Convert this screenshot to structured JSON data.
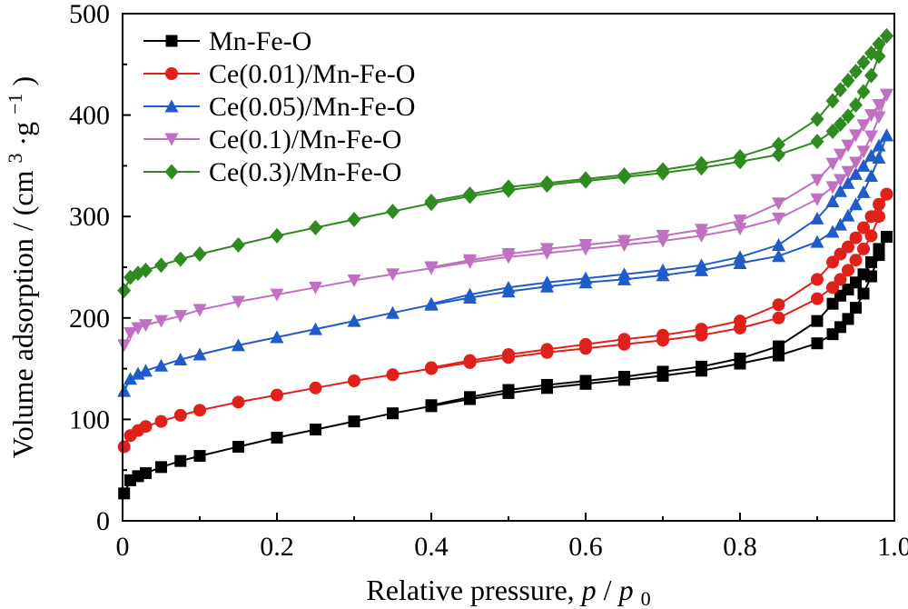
{
  "chart_data": {
    "type": "line",
    "title": "",
    "xlabel": "Relative pressure,",
    "xlabel_p": "p",
    "xlabel_slash": "/",
    "xlabel_p0": "p",
    "xlabel_p0_sub": "0",
    "ylabel": "Volume adsorption / (cm",
    "ylabel_sup3": "3",
    "ylabel_mid": "·g",
    "ylabel_supm1": "−1",
    "ylabel_end": ")",
    "xlim": [
      0,
      1.0
    ],
    "ylim": [
      0,
      500
    ],
    "xticks": [
      "0",
      "0.2",
      "0.4",
      "0.6",
      "0.8",
      "1.0"
    ],
    "xtick_values": [
      0,
      0.2,
      0.4,
      0.6,
      0.8,
      1.0
    ],
    "yticks": [
      "0",
      "100",
      "200",
      "300",
      "400",
      "500"
    ],
    "ytick_values": [
      0,
      100,
      200,
      300,
      400,
      500
    ],
    "grid": false,
    "legend_position": "top-left",
    "series": [
      {
        "name": "Mn-Fe-O",
        "color": "#000000",
        "marker": "square",
        "adsorption": [
          [
            0.002,
            27
          ],
          [
            0.01,
            40
          ],
          [
            0.02,
            44
          ],
          [
            0.03,
            47
          ],
          [
            0.05,
            53
          ],
          [
            0.075,
            59
          ],
          [
            0.1,
            64
          ],
          [
            0.15,
            73
          ],
          [
            0.2,
            82
          ],
          [
            0.25,
            90
          ],
          [
            0.3,
            98
          ],
          [
            0.35,
            106
          ],
          [
            0.4,
            113
          ],
          [
            0.45,
            120
          ],
          [
            0.5,
            126
          ],
          [
            0.55,
            131
          ],
          [
            0.6,
            135
          ],
          [
            0.65,
            139
          ],
          [
            0.7,
            143
          ],
          [
            0.75,
            148
          ],
          [
            0.8,
            155
          ],
          [
            0.85,
            163
          ],
          [
            0.9,
            175
          ],
          [
            0.92,
            184
          ],
          [
            0.93,
            191
          ],
          [
            0.94,
            199
          ],
          [
            0.95,
            210
          ],
          [
            0.96,
            224
          ],
          [
            0.97,
            241
          ],
          [
            0.98,
            262
          ],
          [
            0.99,
            280
          ]
        ],
        "desorption": [
          [
            0.99,
            280
          ],
          [
            0.98,
            268
          ],
          [
            0.97,
            255
          ],
          [
            0.96,
            243
          ],
          [
            0.95,
            235
          ],
          [
            0.94,
            228
          ],
          [
            0.93,
            222
          ],
          [
            0.92,
            214
          ],
          [
            0.9,
            197
          ],
          [
            0.85,
            172
          ],
          [
            0.8,
            160
          ],
          [
            0.75,
            152
          ],
          [
            0.7,
            147
          ],
          [
            0.65,
            142
          ],
          [
            0.6,
            138
          ],
          [
            0.55,
            134
          ],
          [
            0.5,
            129
          ],
          [
            0.45,
            122
          ],
          [
            0.4,
            114
          ]
        ]
      },
      {
        "name": "Ce(0.01)/Mn-Fe-O",
        "color": "#e0201b",
        "marker": "circle",
        "adsorption": [
          [
            0.002,
            73
          ],
          [
            0.01,
            84
          ],
          [
            0.02,
            89
          ],
          [
            0.03,
            93
          ],
          [
            0.05,
            98
          ],
          [
            0.075,
            104
          ],
          [
            0.1,
            109
          ],
          [
            0.15,
            117
          ],
          [
            0.2,
            124
          ],
          [
            0.25,
            131
          ],
          [
            0.3,
            138
          ],
          [
            0.35,
            144
          ],
          [
            0.4,
            150
          ],
          [
            0.45,
            156
          ],
          [
            0.5,
            161
          ],
          [
            0.55,
            166
          ],
          [
            0.6,
            170
          ],
          [
            0.65,
            174
          ],
          [
            0.7,
            178
          ],
          [
            0.75,
            183
          ],
          [
            0.8,
            190
          ],
          [
            0.85,
            200
          ],
          [
            0.9,
            219
          ],
          [
            0.92,
            230
          ],
          [
            0.93,
            238
          ],
          [
            0.94,
            247
          ],
          [
            0.95,
            257
          ],
          [
            0.96,
            268
          ],
          [
            0.97,
            281
          ],
          [
            0.98,
            300
          ],
          [
            0.99,
            322
          ]
        ],
        "desorption": [
          [
            0.99,
            322
          ],
          [
            0.98,
            312
          ],
          [
            0.97,
            300
          ],
          [
            0.96,
            289
          ],
          [
            0.95,
            279
          ],
          [
            0.94,
            270
          ],
          [
            0.93,
            263
          ],
          [
            0.92,
            255
          ],
          [
            0.9,
            238
          ],
          [
            0.85,
            213
          ],
          [
            0.8,
            197
          ],
          [
            0.75,
            189
          ],
          [
            0.7,
            183
          ],
          [
            0.65,
            179
          ],
          [
            0.6,
            174
          ],
          [
            0.55,
            169
          ],
          [
            0.5,
            164
          ],
          [
            0.45,
            158
          ],
          [
            0.4,
            151
          ]
        ]
      },
      {
        "name": "Ce(0.05)/Mn-Fe-O",
        "color": "#1f5cc8",
        "marker": "triangle-up",
        "adsorption": [
          [
            0.002,
            128
          ],
          [
            0.01,
            140
          ],
          [
            0.02,
            145
          ],
          [
            0.03,
            148
          ],
          [
            0.05,
            153
          ],
          [
            0.075,
            159
          ],
          [
            0.1,
            164
          ],
          [
            0.15,
            173
          ],
          [
            0.2,
            181
          ],
          [
            0.25,
            189
          ],
          [
            0.3,
            197
          ],
          [
            0.35,
            205
          ],
          [
            0.4,
            213
          ],
          [
            0.45,
            220
          ],
          [
            0.5,
            226
          ],
          [
            0.55,
            231
          ],
          [
            0.6,
            235
          ],
          [
            0.65,
            238
          ],
          [
            0.7,
            242
          ],
          [
            0.75,
            247
          ],
          [
            0.8,
            254
          ],
          [
            0.85,
            261
          ],
          [
            0.9,
            275
          ],
          [
            0.92,
            285
          ],
          [
            0.93,
            292
          ],
          [
            0.94,
            301
          ],
          [
            0.95,
            312
          ],
          [
            0.96,
            324
          ],
          [
            0.97,
            340
          ],
          [
            0.98,
            358
          ],
          [
            0.99,
            380
          ]
        ],
        "desorption": [
          [
            0.99,
            380
          ],
          [
            0.98,
            370
          ],
          [
            0.97,
            360
          ],
          [
            0.96,
            350
          ],
          [
            0.95,
            342
          ],
          [
            0.94,
            333
          ],
          [
            0.93,
            325
          ],
          [
            0.92,
            315
          ],
          [
            0.9,
            298
          ],
          [
            0.85,
            272
          ],
          [
            0.8,
            260
          ],
          [
            0.75,
            252
          ],
          [
            0.7,
            247
          ],
          [
            0.65,
            243
          ],
          [
            0.6,
            239
          ],
          [
            0.55,
            235
          ],
          [
            0.5,
            230
          ],
          [
            0.45,
            223
          ],
          [
            0.4,
            214
          ]
        ]
      },
      {
        "name": "Ce(0.1)/Mn-Fe-O",
        "color": "#c070c0",
        "marker": "triangle-down",
        "adsorption": [
          [
            0.002,
            173
          ],
          [
            0.01,
            185
          ],
          [
            0.02,
            190
          ],
          [
            0.03,
            193
          ],
          [
            0.05,
            197
          ],
          [
            0.075,
            202
          ],
          [
            0.1,
            208
          ],
          [
            0.15,
            216
          ],
          [
            0.2,
            223
          ],
          [
            0.25,
            230
          ],
          [
            0.3,
            237
          ],
          [
            0.35,
            243
          ],
          [
            0.4,
            249
          ],
          [
            0.45,
            255
          ],
          [
            0.5,
            260
          ],
          [
            0.55,
            264
          ],
          [
            0.6,
            268
          ],
          [
            0.65,
            272
          ],
          [
            0.7,
            276
          ],
          [
            0.75,
            281
          ],
          [
            0.8,
            288
          ],
          [
            0.85,
            298
          ],
          [
            0.9,
            317
          ],
          [
            0.92,
            329
          ],
          [
            0.93,
            336
          ],
          [
            0.94,
            344
          ],
          [
            0.95,
            353
          ],
          [
            0.96,
            364
          ],
          [
            0.97,
            379
          ],
          [
            0.98,
            398
          ],
          [
            0.99,
            420
          ]
        ],
        "desorption": [
          [
            0.99,
            420
          ],
          [
            0.98,
            410
          ],
          [
            0.97,
            400
          ],
          [
            0.96,
            390
          ],
          [
            0.95,
            380
          ],
          [
            0.94,
            370
          ],
          [
            0.93,
            361
          ],
          [
            0.92,
            352
          ],
          [
            0.9,
            336
          ],
          [
            0.85,
            313
          ],
          [
            0.8,
            296
          ],
          [
            0.75,
            287
          ],
          [
            0.7,
            281
          ],
          [
            0.65,
            276
          ],
          [
            0.6,
            272
          ],
          [
            0.55,
            268
          ],
          [
            0.5,
            263
          ],
          [
            0.45,
            257
          ],
          [
            0.4,
            250
          ]
        ]
      },
      {
        "name": "Ce(0.3)/Mn-Fe-O",
        "color": "#2f8a1f",
        "marker": "diamond",
        "adsorption": [
          [
            0.002,
            227
          ],
          [
            0.01,
            240
          ],
          [
            0.02,
            244
          ],
          [
            0.03,
            247
          ],
          [
            0.05,
            252
          ],
          [
            0.075,
            258
          ],
          [
            0.1,
            263
          ],
          [
            0.15,
            272
          ],
          [
            0.2,
            281
          ],
          [
            0.25,
            289
          ],
          [
            0.3,
            297
          ],
          [
            0.35,
            305
          ],
          [
            0.4,
            313
          ],
          [
            0.45,
            320
          ],
          [
            0.5,
            326
          ],
          [
            0.55,
            331
          ],
          [
            0.6,
            335
          ],
          [
            0.65,
            339
          ],
          [
            0.7,
            343
          ],
          [
            0.75,
            348
          ],
          [
            0.8,
            354
          ],
          [
            0.85,
            361
          ],
          [
            0.9,
            374
          ],
          [
            0.92,
            384
          ],
          [
            0.93,
            391
          ],
          [
            0.94,
            399
          ],
          [
            0.95,
            410
          ],
          [
            0.96,
            423
          ],
          [
            0.97,
            439
          ],
          [
            0.98,
            458
          ],
          [
            0.99,
            478
          ]
        ],
        "desorption": [
          [
            0.99,
            478
          ],
          [
            0.98,
            470
          ],
          [
            0.97,
            461
          ],
          [
            0.96,
            452
          ],
          [
            0.95,
            443
          ],
          [
            0.94,
            434
          ],
          [
            0.93,
            425
          ],
          [
            0.92,
            414
          ],
          [
            0.9,
            396
          ],
          [
            0.85,
            371
          ],
          [
            0.8,
            359
          ],
          [
            0.75,
            352
          ],
          [
            0.7,
            346
          ],
          [
            0.65,
            341
          ],
          [
            0.6,
            337
          ],
          [
            0.55,
            333
          ],
          [
            0.5,
            329
          ],
          [
            0.45,
            322
          ],
          [
            0.4,
            315
          ]
        ]
      }
    ]
  }
}
